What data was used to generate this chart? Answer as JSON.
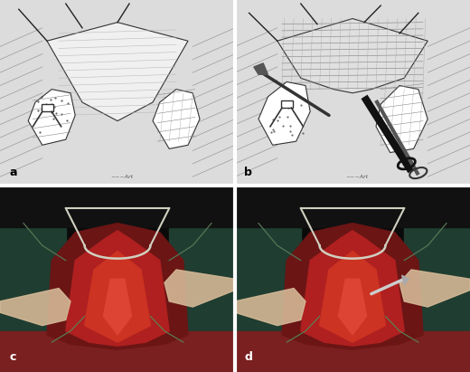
{
  "figure_width": 5.2,
  "figure_height": 4.11,
  "dpi": 100,
  "panel_labels": [
    "a",
    "b",
    "c",
    "d"
  ],
  "label_fontsize": 9,
  "label_color_top": "black",
  "label_color_bottom": "white",
  "top_bg_color": "#dcdcdc",
  "bottom_bg_color": "#111111",
  "border_color": "white",
  "border_lw": 3,
  "panels": {
    "a": {
      "bg": "#d8d8d8",
      "sketch_lines_color": "#888888",
      "tissue_color": "#ffffff",
      "tissue_ec": "#333333",
      "shading_color": "#aaaaaa"
    },
    "b": {
      "bg": "#d8d8d8",
      "scissors_color": "#111111",
      "tissue_color": "#ffffff",
      "shading_color": "#aaaaaa"
    },
    "c": {
      "bg": "#1a1a1a"
    },
    "d": {
      "bg": "#1a1a1a"
    }
  }
}
